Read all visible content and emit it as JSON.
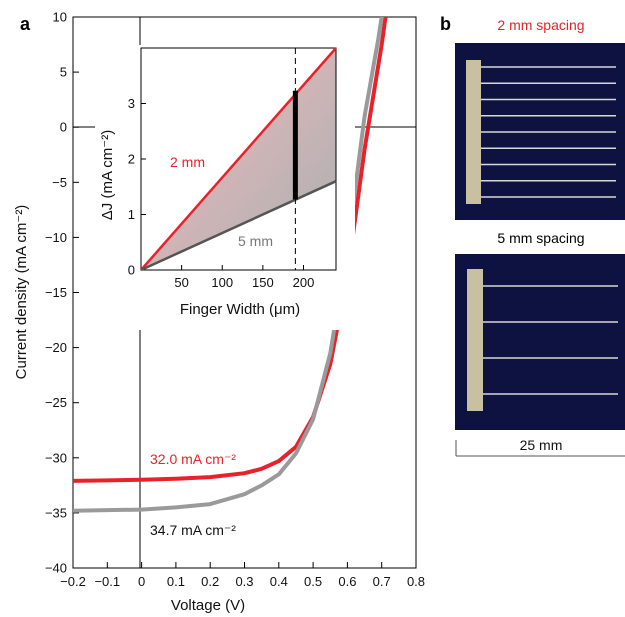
{
  "panels": {
    "a": "a",
    "b": "b"
  },
  "chart_data": [
    {
      "type": "line",
      "xlabel": "Voltage (V)",
      "ylabel": "Current density (mA cm⁻²)",
      "xlim": [
        -0.2,
        0.8
      ],
      "ylim": [
        -40,
        10
      ],
      "xticks": [
        "−0.2",
        "−0.1",
        "0",
        "0.1",
        "0.2",
        "0.3",
        "0.4",
        "0.5",
        "0.6",
        "0.7",
        "0.8"
      ],
      "yticks": [
        "10",
        "5",
        "0",
        "−5",
        "−10",
        "−15",
        "−20",
        "−25",
        "−30",
        "−35",
        "−40"
      ],
      "grid": false,
      "series": [
        {
          "color": "#e8222a",
          "x": [
            -0.2,
            -0.1,
            0,
            0.1,
            0.2,
            0.3,
            0.35,
            0.4,
            0.45,
            0.5,
            0.55,
            0.6,
            0.65,
            0.7,
            0.72
          ],
          "y": [
            -32.1,
            -32.05,
            -32.0,
            -31.9,
            -31.75,
            -31.4,
            -31.0,
            -30.3,
            -29.0,
            -26.3,
            -21.5,
            -13.5,
            -2.0,
            7.5,
            12.0
          ]
        },
        {
          "color": "#9a9a9a",
          "x": [
            -0.2,
            -0.1,
            0,
            0.1,
            0.2,
            0.3,
            0.35,
            0.4,
            0.45,
            0.5,
            0.55,
            0.6,
            0.65,
            0.69,
            0.71
          ],
          "y": [
            -34.8,
            -34.75,
            -34.7,
            -34.5,
            -34.2,
            -33.3,
            -32.5,
            -31.5,
            -29.6,
            -26.5,
            -20.5,
            -11.0,
            1.0,
            8.0,
            12.0
          ]
        }
      ],
      "annotations": [
        {
          "text": "32.0 mA cm⁻²",
          "color": "#e8222a"
        },
        {
          "text": "34.7 mA cm⁻²",
          "color": "#111111"
        }
      ]
    },
    {
      "type": "line",
      "xlabel": "Finger Width (μm)",
      "ylabel": "ΔJ (mA cm⁻²)",
      "xlim": [
        0,
        240
      ],
      "ylim": [
        0,
        4
      ],
      "xticks": [
        "50",
        "100",
        "150",
        "200"
      ],
      "yticks": [
        "0",
        "1",
        "2",
        "3"
      ],
      "series": [
        {
          "name": "2 mm",
          "color": "#e8222a",
          "x": [
            0,
            240
          ],
          "y": [
            0,
            4.0
          ]
        },
        {
          "name": "5 mm",
          "color": "#555555",
          "x": [
            0,
            240
          ],
          "y": [
            0,
            1.6
          ]
        }
      ],
      "marker_line": {
        "x": 190,
        "style": "dashed"
      },
      "highlight_bar": {
        "x": 190,
        "y": [
          1.27,
          3.23
        ]
      }
    }
  ],
  "photos": {
    "top_label": "2 mm spacing",
    "bottom_label": "5 mm spacing",
    "scale_label": "25 mm",
    "top_fingers": 9,
    "bottom_fingers": 4
  },
  "colors": {
    "red": "#e8222a",
    "gray": "#9a9a9a",
    "cell_bg": "#0d1240",
    "busbar": "#c7c1a2"
  }
}
